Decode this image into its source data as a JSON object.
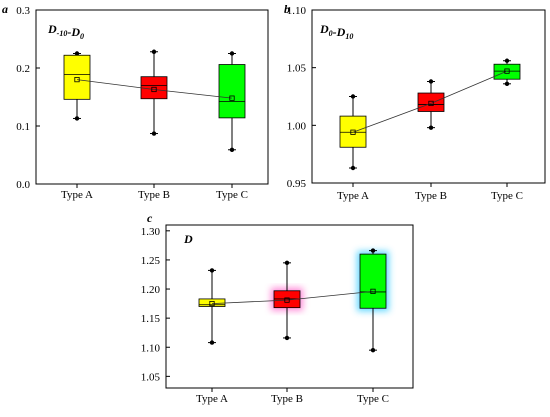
{
  "chart_data": [
    {
      "type": "box",
      "panel_label": "a",
      "title": "D-10-D0",
      "title_parts": [
        {
          "text": "D",
          "sub": "-10"
        },
        {
          "text": "-D",
          "sub": "0"
        }
      ],
      "categories": [
        "Type A",
        "Type B",
        "Type C"
      ],
      "ylim": [
        0.0,
        0.3
      ],
      "yticks": [
        "0.0",
        "0.1",
        "0.2",
        "0.3"
      ],
      "ytick_values": [
        0.0,
        0.1,
        0.2,
        0.3
      ],
      "boxes": [
        {
          "category": "Type A",
          "color": "#ffff00",
          "whisker_low": 0.113,
          "q1": 0.146,
          "median": 0.189,
          "q3": 0.222,
          "whisker_high": 0.225,
          "mean": 0.18
        },
        {
          "category": "Type B",
          "color": "#ff0000",
          "whisker_low": 0.087,
          "q1": 0.147,
          "median": 0.17,
          "q3": 0.185,
          "whisker_high": 0.228,
          "mean": 0.163
        },
        {
          "category": "Type C",
          "color": "#00ff00",
          "whisker_low": 0.059,
          "q1": 0.114,
          "median": 0.142,
          "q3": 0.206,
          "whisker_high": 0.225,
          "mean": 0.148
        }
      ]
    },
    {
      "type": "box",
      "panel_label": "b",
      "title": "D0-D10",
      "title_parts": [
        {
          "text": "D",
          "sub": "0"
        },
        {
          "text": "-D",
          "sub": "10"
        }
      ],
      "categories": [
        "Type A",
        "Type B",
        "Type C"
      ],
      "ylim": [
        0.95,
        1.1
      ],
      "yticks": [
        "0.95",
        "1.00",
        "1.05",
        "1.10"
      ],
      "ytick_values": [
        0.95,
        1.0,
        1.05,
        1.1
      ],
      "boxes": [
        {
          "category": "Type A",
          "color": "#ffff00",
          "whisker_low": 0.963,
          "q1": 0.981,
          "median": 0.994,
          "q3": 1.008,
          "whisker_high": 1.025,
          "mean": 0.994
        },
        {
          "category": "Type B",
          "color": "#ff0000",
          "whisker_low": 0.998,
          "q1": 1.012,
          "median": 1.018,
          "q3": 1.028,
          "whisker_high": 1.038,
          "mean": 1.019
        },
        {
          "category": "Type C",
          "color": "#00ff00",
          "whisker_low": 1.036,
          "q1": 1.04,
          "median": 1.047,
          "q3": 1.053,
          "whisker_high": 1.056,
          "mean": 1.047
        }
      ]
    },
    {
      "type": "box",
      "panel_label": "c",
      "title": "D",
      "title_parts": [
        {
          "text": "D",
          "sub": ""
        }
      ],
      "categories": [
        "Type A",
        "Type B",
        "Type C"
      ],
      "ylim": [
        1.03,
        1.31
      ],
      "yticks": [
        "1.05",
        "1.10",
        "1.15",
        "1.20",
        "1.25",
        "1.30"
      ],
      "ytick_values": [
        1.05,
        1.1,
        1.15,
        1.2,
        1.25,
        1.3
      ],
      "boxes": [
        {
          "category": "Type A",
          "color": "#ffff00",
          "glow": "",
          "whisker_low": 1.108,
          "q1": 1.17,
          "median": 1.173,
          "q3": 1.183,
          "whisker_high": 1.232,
          "mean": 1.175
        },
        {
          "category": "Type B",
          "color": "#ff0000",
          "glow": "#ff66cc",
          "whisker_low": 1.116,
          "q1": 1.168,
          "median": 1.183,
          "q3": 1.197,
          "whisker_high": 1.245,
          "mean": 1.181
        },
        {
          "category": "Type C",
          "color": "#00ff00",
          "glow": "#33ccff",
          "whisker_low": 1.095,
          "q1": 1.167,
          "median": 1.195,
          "q3": 1.26,
          "whisker_high": 1.266,
          "mean": 1.196
        }
      ]
    }
  ]
}
